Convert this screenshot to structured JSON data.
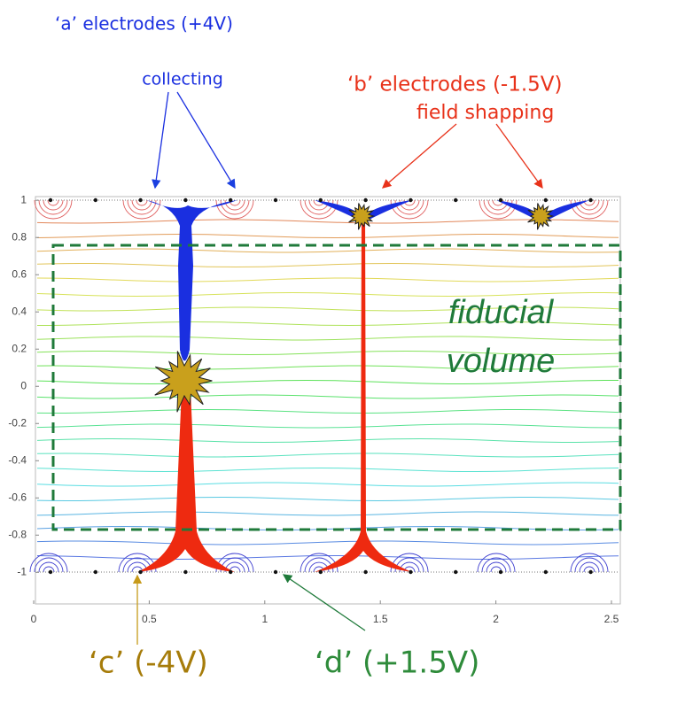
{
  "annotations": {
    "a_electrodes": "‘a’ electrodes (+4V)",
    "collecting": "collecting",
    "b_electrodes": "‘b’ electrodes (-1.5V)",
    "field_shaping": "field shapping",
    "fiducial": [
      "fiducial",
      "volume"
    ],
    "c_electrodes": "‘c’ (-4V)",
    "d_electrodes": "‘d’ (+1.5V)"
  },
  "plot": {
    "xlim": [
      0,
      2.5
    ],
    "ylim": [
      -1.17,
      1.02
    ],
    "xticks": [
      0,
      0.5,
      1,
      1.5,
      2,
      2.5
    ],
    "yticks": [
      1,
      0.8,
      0.6,
      0.4,
      0.2,
      0,
      -0.2,
      -0.4,
      -0.6,
      -0.8,
      -1
    ]
  }
}
